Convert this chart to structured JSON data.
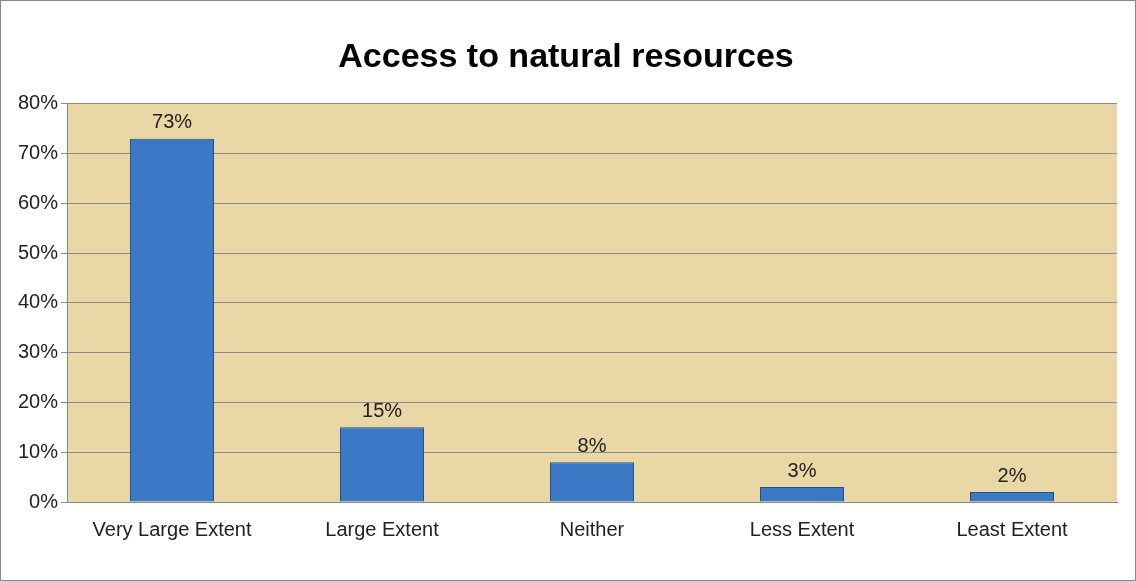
{
  "chart_data": {
    "type": "bar",
    "title": "Access to natural resources",
    "categories": [
      "Very Large Extent",
      "Large Extent",
      "Neither",
      "Less Extent",
      "Least Extent"
    ],
    "values": [
      73,
      15,
      8,
      3,
      2
    ],
    "value_labels": [
      "73%",
      "15%",
      "8%",
      "3%",
      "2%"
    ],
    "color": "#3b78c6",
    "ylim": [
      0,
      80
    ],
    "yticks": [
      {
        "value": 0,
        "label": "0%"
      },
      {
        "value": 10,
        "label": "10%"
      },
      {
        "value": 20,
        "label": "20%"
      },
      {
        "value": 30,
        "label": "30%"
      },
      {
        "value": 40,
        "label": "40%"
      },
      {
        "value": 50,
        "label": "50%"
      },
      {
        "value": 60,
        "label": "60%"
      },
      {
        "value": 70,
        "label": "70%"
      },
      {
        "value": 80,
        "label": "80%"
      }
    ],
    "grid": "y",
    "legend": false
  }
}
